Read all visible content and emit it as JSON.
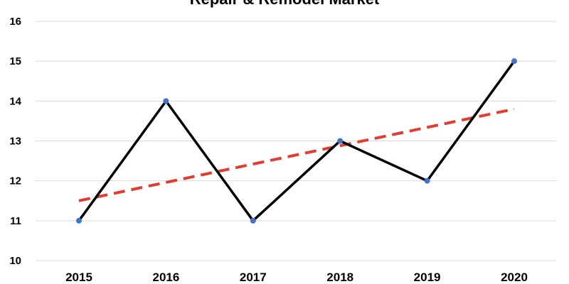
{
  "chart_data": {
    "type": "line",
    "title": "Repair & Remodel Market",
    "categories": [
      "2015",
      "2016",
      "2017",
      "2018",
      "2019",
      "2020"
    ],
    "series": [
      {
        "values": [
          11,
          14,
          11,
          13,
          12,
          15
        ]
      }
    ],
    "trendline": {
      "style": "dashed",
      "start": 11.5,
      "end": 13.8
    },
    "ylim": [
      10,
      16
    ],
    "yticks": [
      "10",
      "11",
      "12",
      "13",
      "14",
      "15",
      "16"
    ],
    "grid": true,
    "colors": {
      "line": "#000000",
      "marker": "#4472C4",
      "trend": "#E03C31",
      "grid": "#D9D9D9"
    }
  }
}
